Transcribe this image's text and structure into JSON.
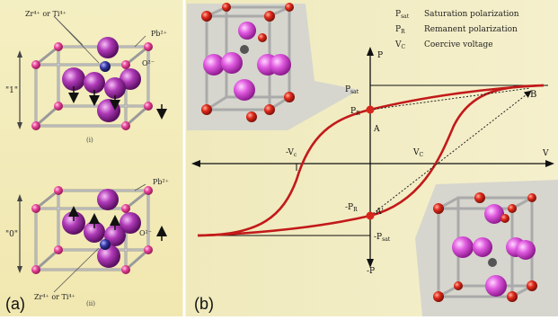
{
  "panel_a": {
    "panel_label": "(a)",
    "top_cell": {
      "dopant_label": "Zr⁴⁺ or Ti⁴⁺",
      "lead_label": "Pb²⁺",
      "oxygen_label": "O²⁻",
      "state_label": "\"1\"",
      "caption": "(i)"
    },
    "bottom_cell": {
      "dopant_label": "Zr⁴⁺ or Ti⁴⁺",
      "lead_label": "Pb²⁺",
      "oxygen_label": "O²⁻",
      "state_label": "\"0\"",
      "caption": "(ii)"
    }
  },
  "panel_b": {
    "panel_label": "(b)",
    "legend": [
      {
        "symbol": "P",
        "sub": "sat",
        "text": "Saturation polarization"
      },
      {
        "symbol": "P",
        "sub": "R",
        "text": "Remanent polarization"
      },
      {
        "symbol": "V",
        "sub": "C",
        "text": "Coercive voltage"
      }
    ],
    "axes": {
      "y_pos": "P",
      "y_neg": "-P",
      "x_pos": "V"
    },
    "labels": {
      "p_sat": "P",
      "p_sat_sub": "sat",
      "p_r": "P",
      "p_r_sub": "R",
      "neg_p_r": "-P",
      "neg_p_r_sub": "R",
      "neg_p_sat": "-P",
      "neg_p_sat_sub": "sat",
      "point_a": "A",
      "point_a_prime": "A'",
      "point_b": "B",
      "neg_vc": "-V",
      "neg_vc_sub": "c",
      "vc": "V",
      "vc_sub": "C"
    }
  },
  "colors": {
    "lead": "#e0407f",
    "oxygen": "#a040b0",
    "center": "#3a3a9a",
    "curve": "#c21a1a",
    "background_a": "#f3eec0",
    "background_b": "#f0e9b8"
  }
}
